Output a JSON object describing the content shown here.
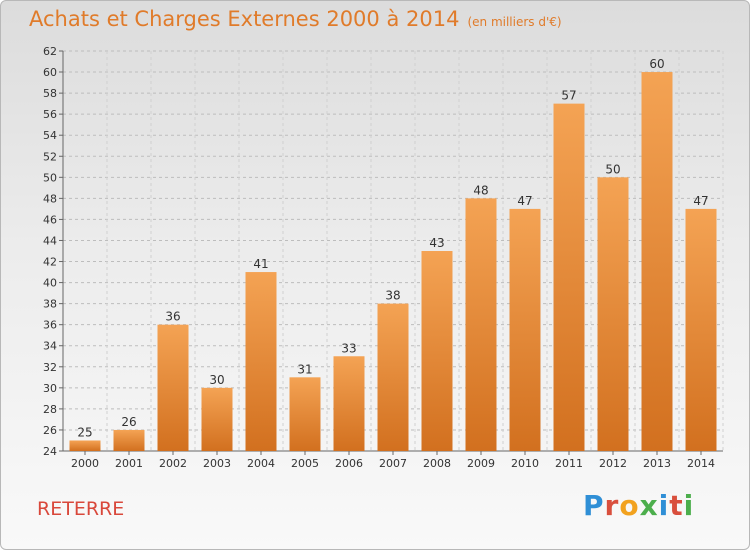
{
  "title": "Achats et Charges Externes 2000 à 2014",
  "subtitle": "(en milliers d'€)",
  "commune": "RETERRE",
  "brand": {
    "letters": [
      "P",
      "r",
      "o",
      "x",
      "i",
      "t",
      "i"
    ],
    "colors": [
      "#2f8fd6",
      "#d94f3d",
      "#f2a21f",
      "#4cae4c",
      "#2f8fd6",
      "#d94f3d",
      "#4cae4c"
    ]
  },
  "colors": {
    "bar_top": "#f4a354",
    "bar_bottom": "#d2701f",
    "title": "#e07b2a"
  },
  "chart_data": {
    "type": "bar",
    "categories": [
      "2000",
      "2001",
      "2002",
      "2003",
      "2004",
      "2005",
      "2006",
      "2007",
      "2008",
      "2009",
      "2010",
      "2011",
      "2012",
      "2013",
      "2014"
    ],
    "values": [
      25,
      26,
      36,
      30,
      41,
      31,
      33,
      38,
      43,
      48,
      47,
      57,
      50,
      60,
      47
    ],
    "ylim": [
      24,
      62
    ],
    "yticks": [
      24,
      26,
      28,
      30,
      32,
      34,
      36,
      38,
      40,
      42,
      44,
      46,
      48,
      50,
      52,
      54,
      56,
      58,
      60,
      62
    ],
    "grid": "horizontal dashed"
  }
}
